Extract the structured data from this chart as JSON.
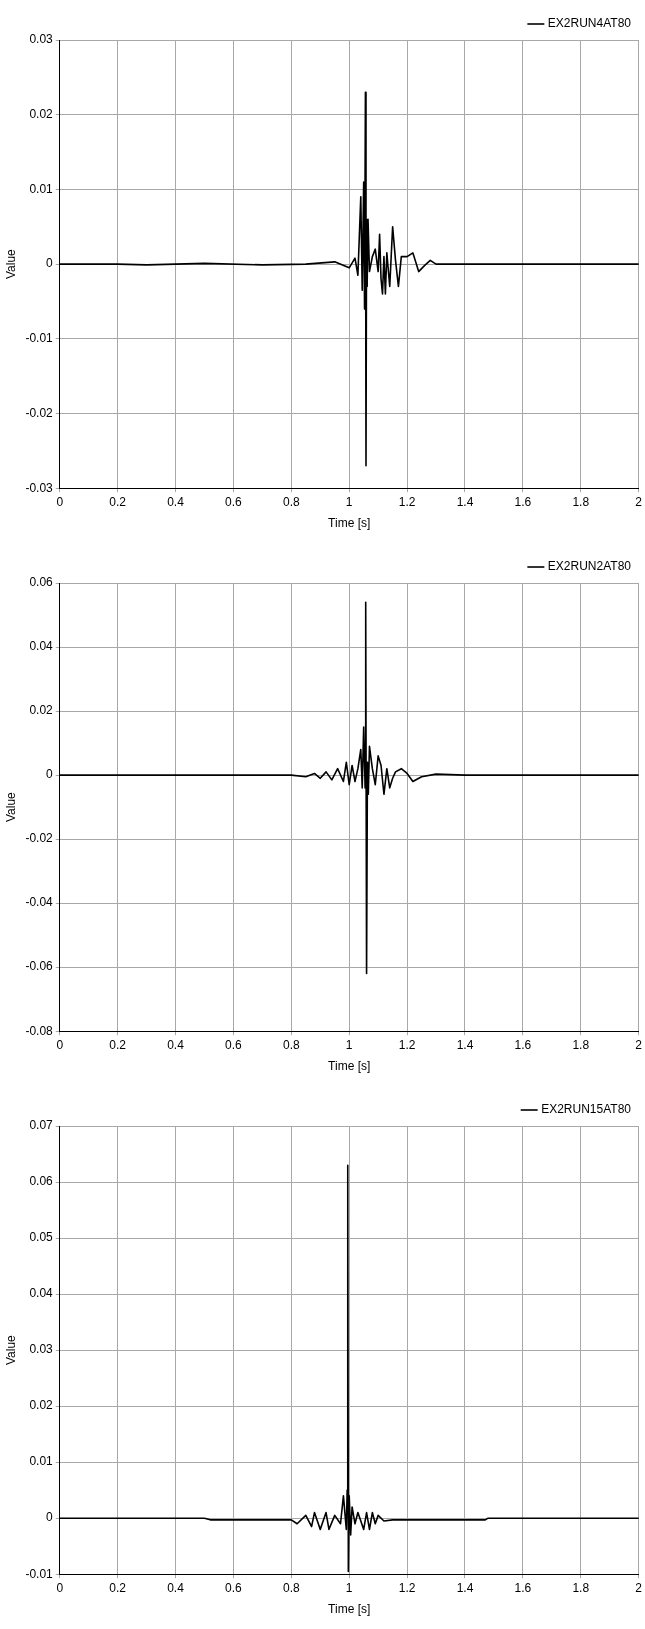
{
  "chart_data": [
    {
      "type": "line",
      "xlabel": "Time [s]",
      "ylabel": "Value",
      "xlim": [
        0,
        2
      ],
      "xticks": [
        0,
        0.2,
        0.4,
        0.6,
        0.8,
        1,
        1.2,
        1.4,
        1.6,
        1.8,
        2
      ],
      "ylim": [
        -0.03,
        0.03
      ],
      "yticks": [
        -0.03,
        -0.02,
        -0.01,
        0,
        0.01,
        0.02,
        0.03
      ],
      "grid": true,
      "legend": "top right",
      "line_style": "solid",
      "marker": "none",
      "x": [
        0,
        0.2,
        0.3,
        0.5,
        0.7,
        0.85,
        0.95,
        1.0,
        1.02,
        1.03,
        1.04,
        1.045,
        1.05,
        1.053,
        1.056,
        1.058,
        1.06,
        1.062,
        1.065,
        1.07,
        1.08,
        1.09,
        1.1,
        1.105,
        1.11,
        1.115,
        1.12,
        1.125,
        1.13,
        1.14,
        1.15,
        1.16,
        1.17,
        1.18,
        1.2,
        1.22,
        1.24,
        1.26,
        1.28,
        1.3,
        1.4,
        1.6,
        2
      ],
      "series": [
        {
          "name": "EX2RUN4AT80",
          "color": "#000000",
          "values": [
            0,
            0,
            -0.0001,
            0.0001,
            -0.0001,
            0,
            0.0003,
            -0.0005,
            0.0008,
            -0.0015,
            0.009,
            -0.0035,
            0.011,
            -0.006,
            0.023,
            -0.027,
            0.006,
            -0.003,
            0.006,
            -0.001,
            0.001,
            0.002,
            -0.001,
            0.004,
            -0.002,
            -0.004,
            0.001,
            -0.004,
            0.0015,
            -0.003,
            0.005,
            0.0005,
            -0.003,
            0.001,
            0.001,
            0.0015,
            -0.001,
            -0.0002,
            0.0005,
            0,
            0,
            0,
            0
          ]
        }
      ]
    },
    {
      "type": "line",
      "xlabel": "Time [s]",
      "ylabel": "Value",
      "xlim": [
        0,
        2
      ],
      "xticks": [
        0,
        0.2,
        0.4,
        0.6,
        0.8,
        1,
        1.2,
        1.4,
        1.6,
        1.8,
        2
      ],
      "ylim": [
        -0.08,
        0.06
      ],
      "yticks": [
        -0.08,
        -0.06,
        -0.04,
        -0.02,
        0,
        0.02,
        0.04,
        0.06
      ],
      "grid": true,
      "legend": "top right",
      "line_style": "solid",
      "marker": "none",
      "x": [
        0,
        0.5,
        0.8,
        0.85,
        0.88,
        0.9,
        0.92,
        0.94,
        0.96,
        0.98,
        0.99,
        1.0,
        1.01,
        1.02,
        1.03,
        1.04,
        1.045,
        1.05,
        1.055,
        1.057,
        1.06,
        1.063,
        1.066,
        1.07,
        1.08,
        1.09,
        1.1,
        1.11,
        1.12,
        1.13,
        1.14,
        1.15,
        1.16,
        1.18,
        1.2,
        1.22,
        1.25,
        1.3,
        1.4,
        1.6,
        2
      ],
      "series": [
        {
          "name": "EX2RUN2AT80",
          "color": "#000000",
          "values": [
            0,
            0,
            0,
            -0.0005,
            0.0005,
            -0.001,
            0.001,
            -0.0015,
            0.002,
            -0.002,
            0.004,
            -0.003,
            0.003,
            -0.002,
            0.002,
            0.008,
            -0.004,
            0.015,
            -0.004,
            0.054,
            -0.062,
            0.004,
            -0.006,
            0.009,
            0.002,
            -0.003,
            0.006,
            0.003,
            -0.006,
            0.002,
            -0.004,
            -0.001,
            0.001,
            0.002,
            0.0005,
            -0.002,
            -0.0005,
            0.0003,
            0,
            0,
            0
          ]
        }
      ]
    },
    {
      "type": "line",
      "xlabel": "Time [s]",
      "ylabel": "Value",
      "xlim": [
        0,
        2
      ],
      "xticks": [
        0,
        0.2,
        0.4,
        0.6,
        0.8,
        1,
        1.2,
        1.4,
        1.6,
        1.8,
        2
      ],
      "ylim": [
        -0.01,
        0.07
      ],
      "yticks": [
        -0.01,
        0,
        0.01,
        0.02,
        0.03,
        0.04,
        0.05,
        0.06,
        0.07
      ],
      "grid": true,
      "legend": "top right",
      "line_style": "solid",
      "marker": "none",
      "x": [
        0,
        0.5,
        0.52,
        0.8,
        0.82,
        0.85,
        0.87,
        0.88,
        0.9,
        0.92,
        0.93,
        0.95,
        0.97,
        0.98,
        0.99,
        0.993,
        0.995,
        0.997,
        1.0,
        1.005,
        1.01,
        1.02,
        1.03,
        1.05,
        1.06,
        1.07,
        1.08,
        1.09,
        1.1,
        1.12,
        1.15,
        1.2,
        1.47,
        1.48,
        2
      ],
      "series": [
        {
          "name": "EX2RUN15AT80",
          "color": "#000000",
          "values": [
            0,
            0,
            -0.0003,
            -0.0003,
            -0.001,
            0.0005,
            -0.0015,
            0.001,
            -0.002,
            0.001,
            -0.002,
            0.0005,
            -0.001,
            0.004,
            -0.002,
            0.005,
            0.063,
            -0.0095,
            0.004,
            -0.003,
            0.002,
            -0.001,
            0.001,
            -0.002,
            0.001,
            -0.002,
            0.001,
            -0.001,
            0.0005,
            -0.0005,
            -0.0003,
            -0.0003,
            -0.0003,
            0,
            0
          ]
        }
      ]
    }
  ]
}
